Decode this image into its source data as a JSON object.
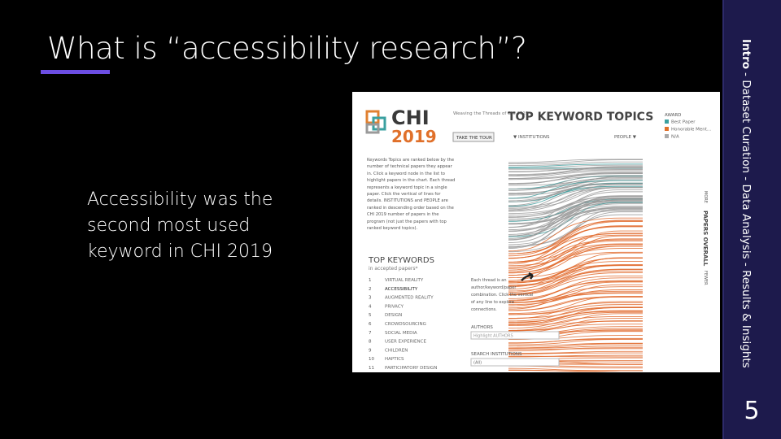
{
  "slide": {
    "title": "What is “accessibility research”?",
    "body": [
      "Accessibility was the",
      "second most used",
      "keyword in CHI 2019"
    ],
    "page_number": 5
  },
  "sidebar": {
    "current": "Intro",
    "rest": "- Dataset Curation - Data Analysis - Results & Insights"
  },
  "screenshot": {
    "logo": "CHI",
    "logo_year": "2019",
    "intro": "Weaving the Threads of CHI 2019",
    "tour_button": "TAKE THE TOUR",
    "heading": "TOP KEYWORD TOPICS",
    "award_title": "AWARD",
    "awards": [
      "Best Paper",
      "Honorable Ment...",
      "N/A"
    ],
    "institutions": "▼ INSTITUTIONS",
    "people": "PEOPLE ▼",
    "description": "Keywords Topics are ranked below by the number of technical papers they appear in. Click a keyword node in the list to highlight papers in the chart. Each thread represents a keyword topic in a single paper. Click the vertical of lines for details. INSTITUTIONS and PEOPLE are ranked in descending order based on the CHI 2019 number of papers in the program (not just the papers with top ranked keyword topics).",
    "keywords_title": "TOP KEYWORDS",
    "keywords_subtitle": "in accepted papers*",
    "keywords": [
      "VIRTUAL REALITY",
      "ACCESSIBILITY",
      "AUGMENTED REALITY",
      "PRIVACY",
      "DESIGN",
      "CROWDSOURCING",
      "SOCIAL MEDIA",
      "USER EXPERIENCE",
      "CHILDREN",
      "HAPTICS",
      "PARTICIPATORY DESIGN"
    ],
    "thread_note": "Each thread is an author/keyword/paper combination. Click the vertical of any line to explore connections.",
    "authors_title": "AUTHORS",
    "authors_placeholder": "Highlight AUTHORS",
    "search_title": "SEARCH INSTITUTIONS",
    "search_value": "(All)",
    "vertical_more": "MORE",
    "vertical_label": "PAPERS OVERALL",
    "vertical_fewer": "FEWER"
  }
}
